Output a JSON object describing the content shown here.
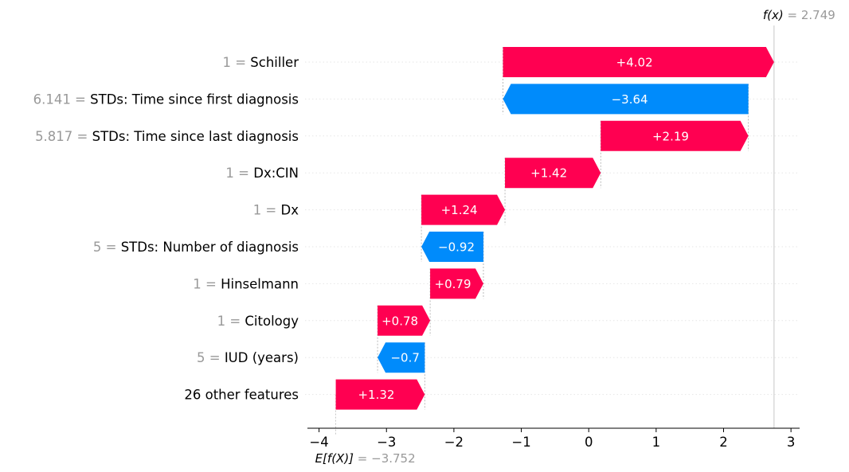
{
  "chart_data": {
    "type": "waterfall",
    "base_value": -3.752,
    "final_value": 2.749,
    "fx_label": "f(x)",
    "fx_value_text": "= 2.749",
    "ex_label": "E[f(X)]",
    "ex_value_text": "= −3.752",
    "features": [
      {
        "value": "1",
        "name": "Schiller",
        "contribution": 4.02,
        "label": "+4.02"
      },
      {
        "value": "6.141",
        "name": "STDs: Time since first diagnosis",
        "contribution": -3.64,
        "label": "−3.64"
      },
      {
        "value": "5.817",
        "name": "STDs: Time since last diagnosis",
        "contribution": 2.19,
        "label": "+2.19"
      },
      {
        "value": "1",
        "name": "Dx:CIN",
        "contribution": 1.42,
        "label": "+1.42"
      },
      {
        "value": "1",
        "name": "Dx",
        "contribution": 1.24,
        "label": "+1.24"
      },
      {
        "value": "5",
        "name": "STDs: Number of diagnosis",
        "contribution": -0.92,
        "label": "−0.92"
      },
      {
        "value": "1",
        "name": "Hinselmann",
        "contribution": 0.79,
        "label": "+0.79"
      },
      {
        "value": "1",
        "name": "Citology",
        "contribution": 0.78,
        "label": "+0.78"
      },
      {
        "value": "5",
        "name": "IUD (years)",
        "contribution": -0.7,
        "label": "−0.7"
      },
      {
        "value": "",
        "name": "26 other features",
        "contribution": 1.32,
        "label": "+1.32"
      }
    ],
    "xlim": [
      -4.2,
      3.1
    ],
    "xticks": [
      -4,
      -3,
      -2,
      -1,
      0,
      1,
      2,
      3
    ],
    "xtick_labels": [
      "−4",
      "−3",
      "−2",
      "−1",
      "0",
      "1",
      "2",
      "3"
    ],
    "colors": {
      "positive": "#ff0051",
      "negative": "#008bfb",
      "value_text": "#999999",
      "grid": "#cccccc"
    }
  }
}
